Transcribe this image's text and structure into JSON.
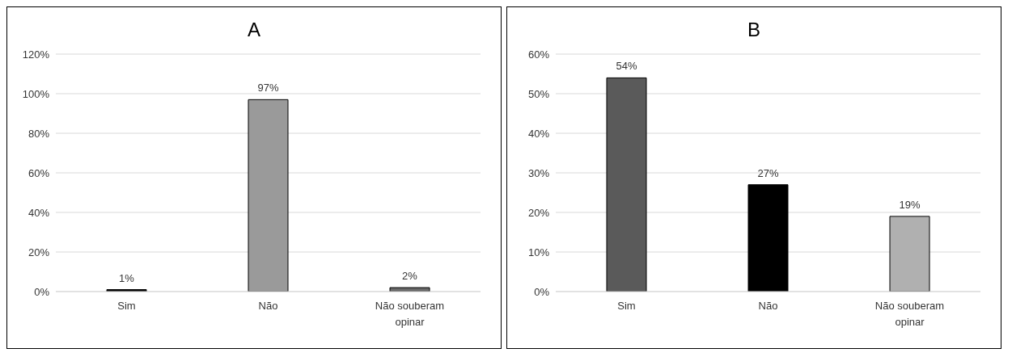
{
  "chart_data": [
    {
      "type": "bar",
      "title": "A",
      "categories": [
        "Sim",
        "Não",
        "Não souberam opinar"
      ],
      "values": [
        1,
        97,
        2
      ],
      "colors": [
        "#000000",
        "#9a9a9a",
        "#6a6a6a"
      ],
      "value_labels": [
        "1%",
        "97%",
        "2%"
      ],
      "ylim": [
        0,
        120
      ],
      "yticks": [
        {
          "value": 0,
          "label": "0%"
        },
        {
          "value": 20,
          "label": "20%"
        },
        {
          "value": 40,
          "label": "40%"
        },
        {
          "value": 60,
          "label": "60%"
        },
        {
          "value": 80,
          "label": "80%"
        },
        {
          "value": 100,
          "label": "100%"
        },
        {
          "value": 120,
          "label": "120%"
        }
      ],
      "grid": "y",
      "legend": false
    },
    {
      "type": "bar",
      "title": "B",
      "categories": [
        "Sim",
        "Não",
        "Não souberam opinar"
      ],
      "values": [
        54,
        27,
        19
      ],
      "colors": [
        "#5a5a5a",
        "#000000",
        "#b0b0b0"
      ],
      "value_labels": [
        "54%",
        "27%",
        "19%"
      ],
      "ylim": [
        0,
        60
      ],
      "yticks": [
        {
          "value": 0,
          "label": "0%"
        },
        {
          "value": 10,
          "label": "10%"
        },
        {
          "value": 20,
          "label": "20%"
        },
        {
          "value": 30,
          "label": "30%"
        },
        {
          "value": 40,
          "label": "40%"
        },
        {
          "value": 50,
          "label": "50%"
        },
        {
          "value": 60,
          "label": "60%"
        }
      ],
      "grid": "y",
      "legend": false
    }
  ]
}
